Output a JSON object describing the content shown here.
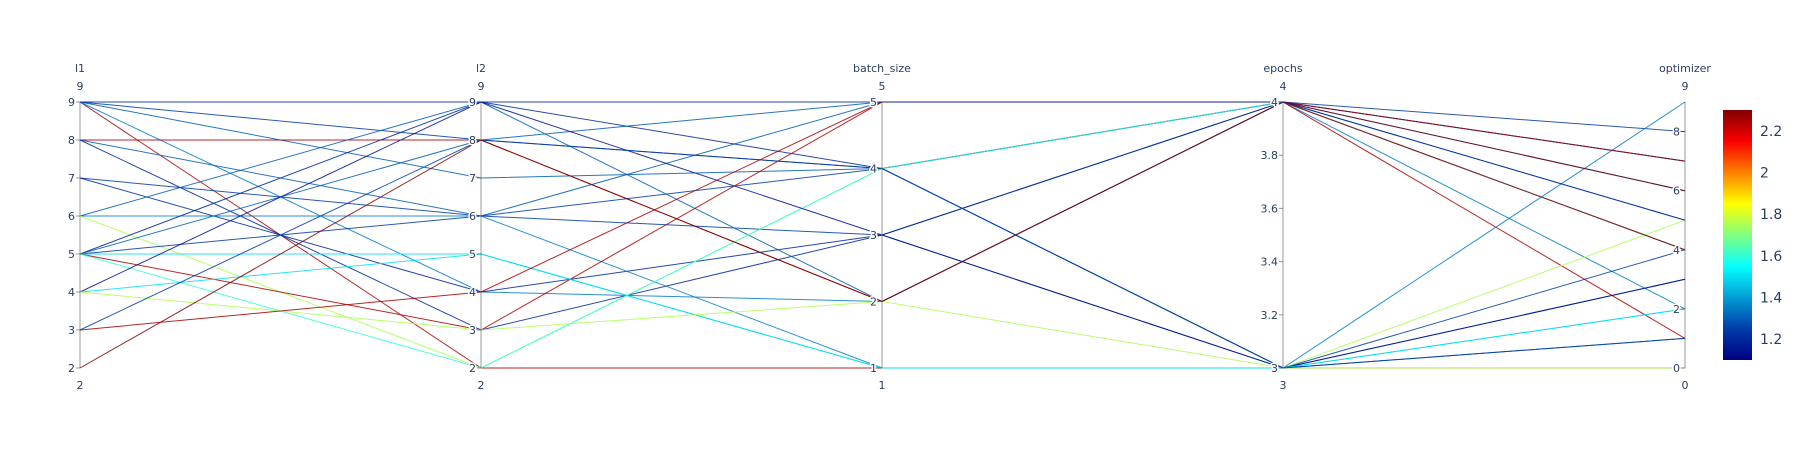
{
  "chart_data": {
    "type": "parallel_coordinates",
    "dimensions": [
      {
        "key": "l1",
        "label": "l1",
        "range": [
          2,
          9
        ],
        "range_labels": [
          "9",
          "2"
        ],
        "ticks": [
          {
            "v": 9,
            "t": "9"
          },
          {
            "v": 8,
            "t": "8"
          },
          {
            "v": 7,
            "t": "7"
          },
          {
            "v": 6,
            "t": "6"
          },
          {
            "v": 5,
            "t": "5"
          },
          {
            "v": 4,
            "t": "4"
          },
          {
            "v": 3,
            "t": "3"
          },
          {
            "v": 2,
            "t": "2"
          }
        ]
      },
      {
        "key": "l2",
        "label": "l2",
        "range": [
          2,
          9
        ],
        "range_labels": [
          "9",
          "2"
        ],
        "ticks": [
          {
            "v": 9,
            "t": "9"
          },
          {
            "v": 8,
            "t": "8"
          },
          {
            "v": 7,
            "t": "7"
          },
          {
            "v": 6,
            "t": "6"
          },
          {
            "v": 5,
            "t": "5"
          },
          {
            "v": 4,
            "t": "4"
          },
          {
            "v": 3,
            "t": "3"
          },
          {
            "v": 2,
            "t": "2"
          }
        ]
      },
      {
        "key": "batch_size",
        "label": "batch_size",
        "range": [
          1,
          5
        ],
        "range_labels": [
          "5",
          "1"
        ],
        "ticks": [
          {
            "v": 5,
            "t": "5"
          },
          {
            "v": 4,
            "t": "4"
          },
          {
            "v": 3,
            "t": "3"
          },
          {
            "v": 2,
            "t": "2"
          },
          {
            "v": 1,
            "t": "1"
          }
        ]
      },
      {
        "key": "epochs",
        "label": "epochs",
        "range": [
          3,
          4
        ],
        "range_labels": [
          "4",
          "3"
        ],
        "ticks": [
          {
            "v": 4,
            "t": "4"
          },
          {
            "v": 3.8,
            "t": "3.8"
          },
          {
            "v": 3.6,
            "t": "3.6"
          },
          {
            "v": 3.4,
            "t": "3.4"
          },
          {
            "v": 3.2,
            "t": "3.2"
          },
          {
            "v": 3,
            "t": "3"
          }
        ]
      },
      {
        "key": "optimizer",
        "label": "optimizer",
        "range": [
          0,
          9
        ],
        "range_labels": [
          "9",
          "0"
        ],
        "ticks": [
          {
            "v": 8,
            "t": "8"
          },
          {
            "v": 6,
            "t": "6"
          },
          {
            "v": 4,
            "t": "4"
          },
          {
            "v": 2,
            "t": "2"
          },
          {
            "v": 0,
            "t": "0"
          }
        ]
      }
    ],
    "colorscale": "Jet",
    "color_range": [
      1.1,
      2.3
    ],
    "colorbar_ticks": [
      "1.2",
      "1.4",
      "1.6",
      "1.8",
      "2",
      "2.2"
    ],
    "colorbar_tick_values": [
      1.2,
      1.4,
      1.6,
      1.8,
      2.0,
      2.2
    ],
    "rows": [
      {
        "l1": 9,
        "l2": 2,
        "batch_size": 1,
        "epochs": 3,
        "optimizer": 0,
        "value": 2.25
      },
      {
        "l1": 9,
        "l2": 8,
        "batch_size": 4,
        "epochs": 4,
        "optimizer": 8,
        "value": 1.25
      },
      {
        "l1": 9,
        "l2": 7,
        "batch_size": 4,
        "epochs": 3,
        "optimizer": 1,
        "value": 1.3
      },
      {
        "l1": 9,
        "l2": 4,
        "batch_size": 2,
        "epochs": 4,
        "optimizer": 2,
        "value": 1.35
      },
      {
        "l1": 8,
        "l2": 8,
        "batch_size": 2,
        "epochs": 4,
        "optimizer": 1,
        "value": 2.25
      },
      {
        "l1": 8,
        "l2": 6,
        "batch_size": 5,
        "epochs": 4,
        "optimizer": 6,
        "value": 1.3
      },
      {
        "l1": 8,
        "l2": 3,
        "batch_size": 3,
        "epochs": 4,
        "optimizer": 7,
        "value": 1.2
      },
      {
        "l1": 7,
        "l2": 6,
        "batch_size": 3,
        "epochs": 3,
        "optimizer": 4,
        "value": 1.25
      },
      {
        "l1": 7,
        "l2": 4,
        "batch_size": 3,
        "epochs": 4,
        "optimizer": 4,
        "value": 1.2
      },
      {
        "l1": 6,
        "l2": 6,
        "batch_size": 1,
        "epochs": 3,
        "optimizer": 9,
        "value": 1.35
      },
      {
        "l1": 6,
        "l2": 9,
        "batch_size": 2,
        "epochs": 4,
        "optimizer": 7,
        "value": 1.3
      },
      {
        "l1": 6,
        "l2": 2,
        "batch_size": 4,
        "epochs": 3,
        "optimizer": 5,
        "value": 1.75
      },
      {
        "l1": 5,
        "l2": 9,
        "batch_size": 4,
        "epochs": 4,
        "optimizer": 4,
        "value": 1.2
      },
      {
        "l1": 5,
        "l2": 8,
        "batch_size": 5,
        "epochs": 4,
        "optimizer": 5,
        "value": 1.3
      },
      {
        "l1": 5,
        "l2": 6,
        "batch_size": 4,
        "epochs": 3,
        "optimizer": 3,
        "value": 1.25
      },
      {
        "l1": 5,
        "l2": 5,
        "batch_size": 1,
        "epochs": 3,
        "optimizer": 2,
        "value": 1.5
      },
      {
        "l1": 5,
        "l2": 3,
        "batch_size": 5,
        "epochs": 4,
        "optimizer": 7,
        "value": 2.25
      },
      {
        "l1": 5,
        "l2": 2,
        "batch_size": 4,
        "epochs": 4,
        "optimizer": 4,
        "value": 1.6
      },
      {
        "l1": 4,
        "l2": 9,
        "batch_size": 3,
        "epochs": 3,
        "optimizer": 3,
        "value": 1.15
      },
      {
        "l1": 4,
        "l2": 5,
        "batch_size": 1,
        "epochs": 3,
        "optimizer": 2,
        "value": 1.5
      },
      {
        "l1": 4,
        "l2": 3,
        "batch_size": 2,
        "epochs": 3,
        "optimizer": 0,
        "value": 1.75
      },
      {
        "l1": 3,
        "l2": 4,
        "batch_size": 5,
        "epochs": 4,
        "optimizer": 4,
        "value": 2.25
      },
      {
        "l1": 3,
        "l2": 8,
        "batch_size": 4,
        "epochs": 3,
        "optimizer": 1,
        "value": 1.25
      },
      {
        "l1": 2,
        "l2": 8,
        "batch_size": 2,
        "epochs": 4,
        "optimizer": 6,
        "value": 2.3
      },
      {
        "l1": 9,
        "l2": 9,
        "batch_size": 5,
        "epochs": 4,
        "optimizer": 5,
        "value": 1.2
      }
    ]
  }
}
